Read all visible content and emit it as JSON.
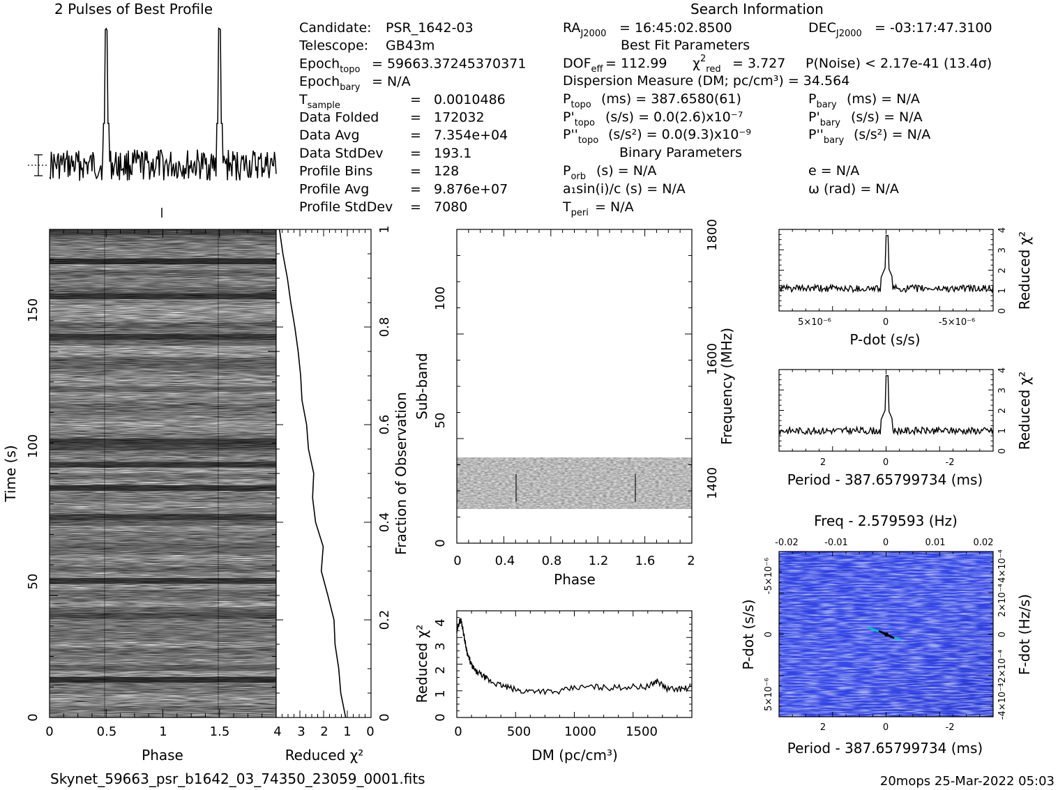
{
  "header": {
    "profile_title": "2 Pulses of Best Profile",
    "search_title": "Search Information",
    "best_fit_title": "Best Fit Parameters",
    "binary_title": "Binary Parameters"
  },
  "candidate_info": [
    {
      "label": "Candidate:",
      "value": "PSR_1642-03"
    },
    {
      "label": "Telescope:",
      "value": "GB43m"
    },
    {
      "label": "Epoch",
      "sub": "topo",
      "value": "= 59663.37245370371"
    },
    {
      "label": "Epoch",
      "sub": "bary",
      "value": "= N/A"
    },
    {
      "label": "T",
      "sub": "sample",
      "value": "= 0.0010486"
    },
    {
      "label": "Data Folded",
      "value": "= 172032"
    },
    {
      "label": "Data Avg",
      "value": "= 7.354e+04"
    },
    {
      "label": "Data StdDev",
      "value": "= 193.1"
    },
    {
      "label": "Profile Bins",
      "value": "= 128"
    },
    {
      "label": "Profile Avg",
      "value": "= 9.876e+07"
    },
    {
      "label": "Profile StdDev",
      "value": "= 7080"
    }
  ],
  "search_info": {
    "ra": "= 16:45:02.8500",
    "dec": "= -03:17:47.3100",
    "dof_eff": "= 112.99",
    "chi2_red": "= 3.727",
    "p_noise": "P(Noise) < 2.17e-41   (13.4σ)",
    "dm": "Dispersion Measure (DM; pc/cm³) = 34.564",
    "p_topo": "(ms) =  387.6580(61)",
    "p_bary": "(ms) = N/A",
    "pd_topo": "(s/s) = 0.0(2.6)x10⁻⁷",
    "pd_bary": "(s/s) = N/A",
    "pdd_topo": "(s/s²) = 0.0(9.3)x10⁻⁹",
    "pdd_bary": "(s/s²) = N/A",
    "p_orb": "(s) = N/A",
    "e": "e = N/A",
    "a1sini": "a₁sin(i)/c (s) = N/A",
    "omega": "ω (rad) = N/A",
    "t_peri": "= N/A"
  },
  "footer": {
    "filename": "Skynet_59663_psr_b1642_03_74350_23059_0001.fits",
    "stamp": "20mops 25-Mar-2022 05:03"
  },
  "chart_data": [
    {
      "name": "pulse-profile",
      "type": "line",
      "x_range": [
        0,
        2
      ],
      "peaks_at_phase": [
        0.5,
        1.5
      ],
      "baseline_fraction": 0.15,
      "peak_fraction": 1.0
    },
    {
      "name": "time-vs-phase",
      "type": "heatmap",
      "xlabel": "Phase",
      "ylabel": "Time (s)",
      "xlim": [
        0,
        2
      ],
      "ylim": [
        0,
        180
      ],
      "x_ticks": [
        "0",
        "0.5",
        "1",
        "1.5"
      ],
      "y_ticks": [
        "0",
        "50",
        "100",
        "150"
      ]
    },
    {
      "name": "reduced-chi2-vs-time",
      "type": "line",
      "xlabel": "Reduced χ²",
      "ylabel": "Fraction of Observation",
      "xlim": [
        4,
        0
      ],
      "ylim": [
        0,
        1
      ],
      "x_ticks": [
        "4",
        "3",
        "2",
        "1",
        "0"
      ],
      "y_ticks": [
        "0",
        "0.2",
        "0.4",
        "0.6",
        "0.8",
        "1"
      ],
      "fraction": [
        0,
        0.05,
        0.1,
        0.15,
        0.2,
        0.25,
        0.3,
        0.35,
        0.4,
        0.45,
        0.5,
        0.55,
        0.6,
        0.65,
        0.7,
        0.75,
        0.8,
        0.85,
        0.9,
        0.95,
        1.0
      ],
      "chi2": [
        1.1,
        1.3,
        1.4,
        1.5,
        1.6,
        1.85,
        2.1,
        2.0,
        2.3,
        2.5,
        2.4,
        2.6,
        2.75,
        2.9,
        2.95,
        3.1,
        3.25,
        3.35,
        3.5,
        3.7,
        3.9
      ]
    },
    {
      "name": "subband-vs-phase",
      "type": "heatmap",
      "xlabel": "Phase",
      "ylabel": "Sub-band",
      "y2label": "Frequency (MHz)",
      "xlim": [
        0,
        2
      ],
      "ylim": [
        0,
        128
      ],
      "x_ticks": [
        "0",
        "0.4",
        "0.8",
        "1.2",
        "1.6",
        "2"
      ],
      "y_ticks": [
        "0",
        "50",
        "100"
      ],
      "y2_ticks": [
        "1400",
        "1600",
        "1800"
      ],
      "active_subbands": [
        15,
        35
      ]
    },
    {
      "name": "chi2-vs-dm",
      "type": "line",
      "xlabel": "DM (pc/cm³)",
      "ylabel": "Reduced χ²",
      "xlim": [
        0,
        1900
      ],
      "ylim": [
        0,
        4.5
      ],
      "x_ticks": [
        "0",
        "500",
        "1000",
        "1500"
      ],
      "y_ticks": [
        "0",
        "1",
        "2",
        "3",
        "4"
      ],
      "x": [
        0,
        20,
        35,
        50,
        70,
        90,
        120,
        150,
        200,
        260,
        330,
        420,
        520,
        650,
        800,
        950,
        1100,
        1250,
        1400,
        1550,
        1620,
        1700,
        1800,
        1900
      ],
      "y": [
        3.6,
        4.05,
        4.1,
        3.7,
        3.1,
        2.6,
        2.2,
        1.95,
        1.8,
        1.55,
        1.4,
        1.25,
        1.1,
        1.15,
        1.05,
        1.25,
        1.3,
        1.25,
        1.3,
        1.3,
        1.55,
        1.2,
        1.2,
        1.25
      ]
    },
    {
      "name": "chi2-vs-pdot",
      "type": "line",
      "xlabel": "P-dot (s/s)",
      "ylabel": "Reduced χ²",
      "xlim": [
        7e-06,
        -7e-06
      ],
      "ylim": [
        0,
        4
      ],
      "x_ticks": [
        "5×10⁻⁶",
        "0",
        "-5×10⁻⁶"
      ],
      "y_ticks": [
        "0",
        "1",
        "2",
        "3",
        "4"
      ],
      "peak_at": 0,
      "peak_value": 3.7,
      "baseline": 1.1
    },
    {
      "name": "chi2-vs-period",
      "type": "line",
      "xlabel": "Period - 387.65799734 (ms)",
      "ylabel": "Reduced χ²",
      "xlim": [
        3.5,
        -3.5
      ],
      "ylim": [
        0,
        4
      ],
      "x_ticks": [
        "2",
        "0",
        "-2"
      ],
      "y_ticks": [
        "0",
        "1",
        "2",
        "3",
        "4"
      ],
      "peak_at": 0,
      "peak_value": 3.7,
      "baseline": 1.0
    },
    {
      "name": "pdot-vs-period",
      "type": "heatmap",
      "title": "Freq - 2.579593 (Hz)",
      "xlabel": "Period - 387.65799734 (ms)",
      "ylabel": "P-dot (s/s)",
      "y2label": "F-dot (Hz/s)",
      "x_ticks": [
        "2",
        "0",
        "-2"
      ],
      "x2_ticks": [
        "-0.02",
        "-0.01",
        "0",
        "0.01",
        "0.02"
      ],
      "y_ticks": [
        "-5×10⁻⁶",
        "0",
        "5×10⁻⁶"
      ],
      "y2_ticks": [
        "4×10⁻⁴",
        "2×10⁻⁴",
        "0",
        "-2×10⁻⁴",
        "-4×10⁻⁴"
      ]
    }
  ]
}
